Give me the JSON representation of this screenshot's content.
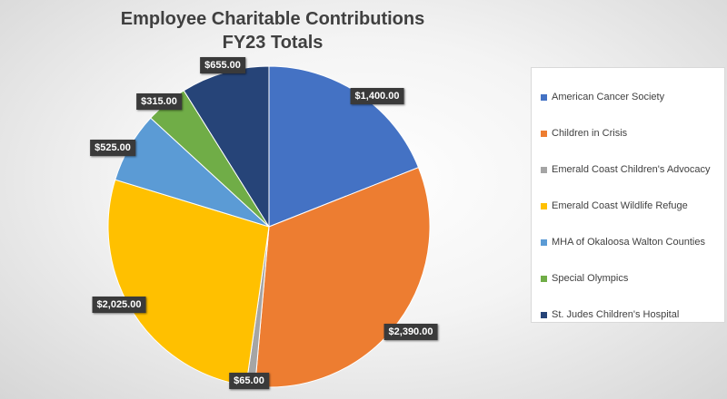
{
  "chart_data": {
    "type": "pie",
    "title": [
      "Employee Charitable Contributions",
      "FY23 Totals"
    ],
    "legend_position": "right",
    "start_angle_deg": 0,
    "direction": "clockwise",
    "slices": [
      {
        "name": "American Cancer Society",
        "value": 1400.0,
        "label": "$1,400.00",
        "color": "#4472C4"
      },
      {
        "name": "Children in Crisis",
        "value": 2390.0,
        "label": "$2,390.00",
        "color": "#ED7D31"
      },
      {
        "name": "Emerald Coast Children's Advocacy",
        "value": 65.0,
        "label": "$65.00",
        "color": "#A5A5A5"
      },
      {
        "name": "Emerald Coast Wildlife Refuge",
        "value": 2025.0,
        "label": "$2,025.00",
        "color": "#FFC000"
      },
      {
        "name": "MHA of Okaloosa Walton Counties",
        "value": 525.0,
        "label": "$525.00",
        "color": "#5B9BD5"
      },
      {
        "name": "Special Olympics",
        "value": 315.0,
        "label": "$315.00",
        "color": "#70AD47"
      },
      {
        "name": "St. Judes Children's Hospital",
        "value": 655.0,
        "label": "$655.00",
        "color": "#264478"
      }
    ]
  }
}
